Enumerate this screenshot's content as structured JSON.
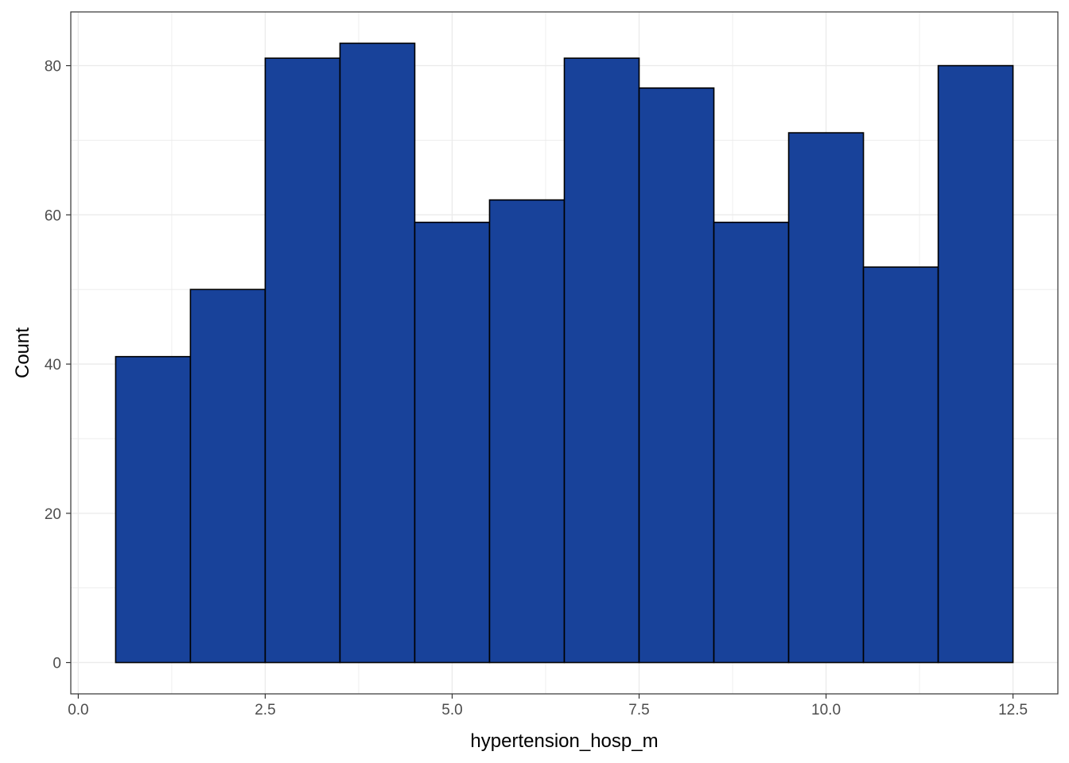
{
  "chart_data": {
    "type": "bar",
    "subtype": "histogram",
    "xlabel": "hypertension_hosp_m",
    "ylabel": "Count",
    "bins": [
      {
        "x_start": 0.5,
        "x_end": 1.5,
        "count": 41
      },
      {
        "x_start": 1.5,
        "x_end": 2.5,
        "count": 50
      },
      {
        "x_start": 2.5,
        "x_end": 3.5,
        "count": 81
      },
      {
        "x_start": 3.5,
        "x_end": 4.5,
        "count": 83
      },
      {
        "x_start": 4.5,
        "x_end": 5.5,
        "count": 59
      },
      {
        "x_start": 5.5,
        "x_end": 6.5,
        "count": 62
      },
      {
        "x_start": 6.5,
        "x_end": 7.5,
        "count": 81
      },
      {
        "x_start": 7.5,
        "x_end": 8.5,
        "count": 77
      },
      {
        "x_start": 8.5,
        "x_end": 9.5,
        "count": 59
      },
      {
        "x_start": 9.5,
        "x_end": 10.5,
        "count": 71
      },
      {
        "x_start": 10.5,
        "x_end": 11.5,
        "count": 53
      },
      {
        "x_start": 11.5,
        "x_end": 12.5,
        "count": 80
      }
    ],
    "xlim": [
      -0.1,
      13.1
    ],
    "ylim": [
      -4.2,
      87.2
    ],
    "x_ticks": [
      0,
      2.5,
      5,
      7.5,
      10,
      12.5
    ],
    "x_tick_labels": [
      "0.0",
      "2.5",
      "5.0",
      "7.5",
      "10.0",
      "12.5"
    ],
    "y_ticks": [
      0,
      20,
      40,
      60,
      80
    ],
    "y_tick_labels": [
      "0",
      "20",
      "40",
      "60",
      "80"
    ],
    "grid": true,
    "bar_fill": "#18429a",
    "bar_outline": "#000000",
    "grid_color": "#ebebeb",
    "panel_border": "#333333"
  }
}
